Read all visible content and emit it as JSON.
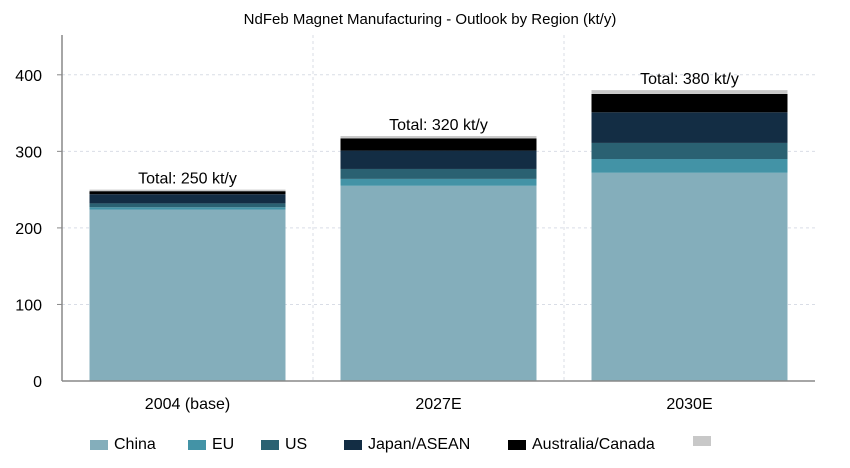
{
  "chart_data": {
    "type": "bar",
    "stacked": true,
    "title": "NdFeb Magnet Manufacturing - Outlook by Region (kt/y)",
    "xlabel": "",
    "ylabel": "",
    "ylim": [
      0,
      450
    ],
    "yticks": [
      0,
      100,
      200,
      300,
      400
    ],
    "grid": true,
    "legend_position": "bottom",
    "categories": [
      "2004 (base)",
      "2027E",
      "2030E"
    ],
    "series": [
      {
        "name": "China",
        "color": "#84aebb",
        "values": [
          224,
          255,
          272
        ]
      },
      {
        "name": "EU",
        "color": "#4393a6",
        "values": [
          3,
          9,
          18
        ]
      },
      {
        "name": "US",
        "color": "#2a6172",
        "values": [
          5,
          13,
          21
        ]
      },
      {
        "name": "Japan/ASEAN",
        "color": "#132d44",
        "values": [
          12,
          24,
          40
        ]
      },
      {
        "name": "Australia/Canada",
        "color": "#000000",
        "values": [
          4,
          16,
          24
        ]
      },
      {
        "name": "",
        "color": "#c8c8c8",
        "values": [
          2,
          3,
          5
        ]
      }
    ],
    "annotations": [
      "Total: 250 kt/y",
      "Total: 320 kt/y",
      "Total: 380 kt/y"
    ],
    "totals": [
      250,
      320,
      380
    ]
  }
}
